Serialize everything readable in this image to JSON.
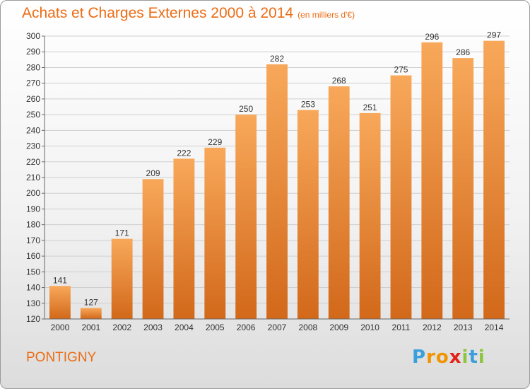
{
  "title": "Achats et Charges Externes 2000 à 2014",
  "subtitle": "(en milliers d'€)",
  "place": "PONTIGNY",
  "logo": {
    "letters": [
      "P",
      "r",
      "o",
      "x",
      "i",
      "t",
      "i"
    ],
    "colors": [
      "#3aa0dc",
      "#f29400",
      "#f29400",
      "#e2231a",
      "#8cc63f",
      "#3aa0dc",
      "#8cc63f"
    ]
  },
  "colors": {
    "accent": "#ec6c13",
    "bar_top": "#f8a85a",
    "bar_bottom": "#d2681a"
  },
  "chart_data": {
    "type": "bar",
    "categories": [
      "2000",
      "2001",
      "2002",
      "2003",
      "2004",
      "2005",
      "2006",
      "2007",
      "2008",
      "2009",
      "2010",
      "2011",
      "2012",
      "2013",
      "2014"
    ],
    "values": [
      141,
      127,
      171,
      209,
      222,
      229,
      250,
      282,
      253,
      268,
      251,
      275,
      296,
      286,
      297
    ],
    "ylim": [
      120,
      300
    ],
    "yticks": [
      120,
      130,
      140,
      150,
      160,
      170,
      180,
      190,
      200,
      210,
      220,
      230,
      240,
      250,
      260,
      270,
      280,
      290,
      300
    ],
    "grid": true
  }
}
